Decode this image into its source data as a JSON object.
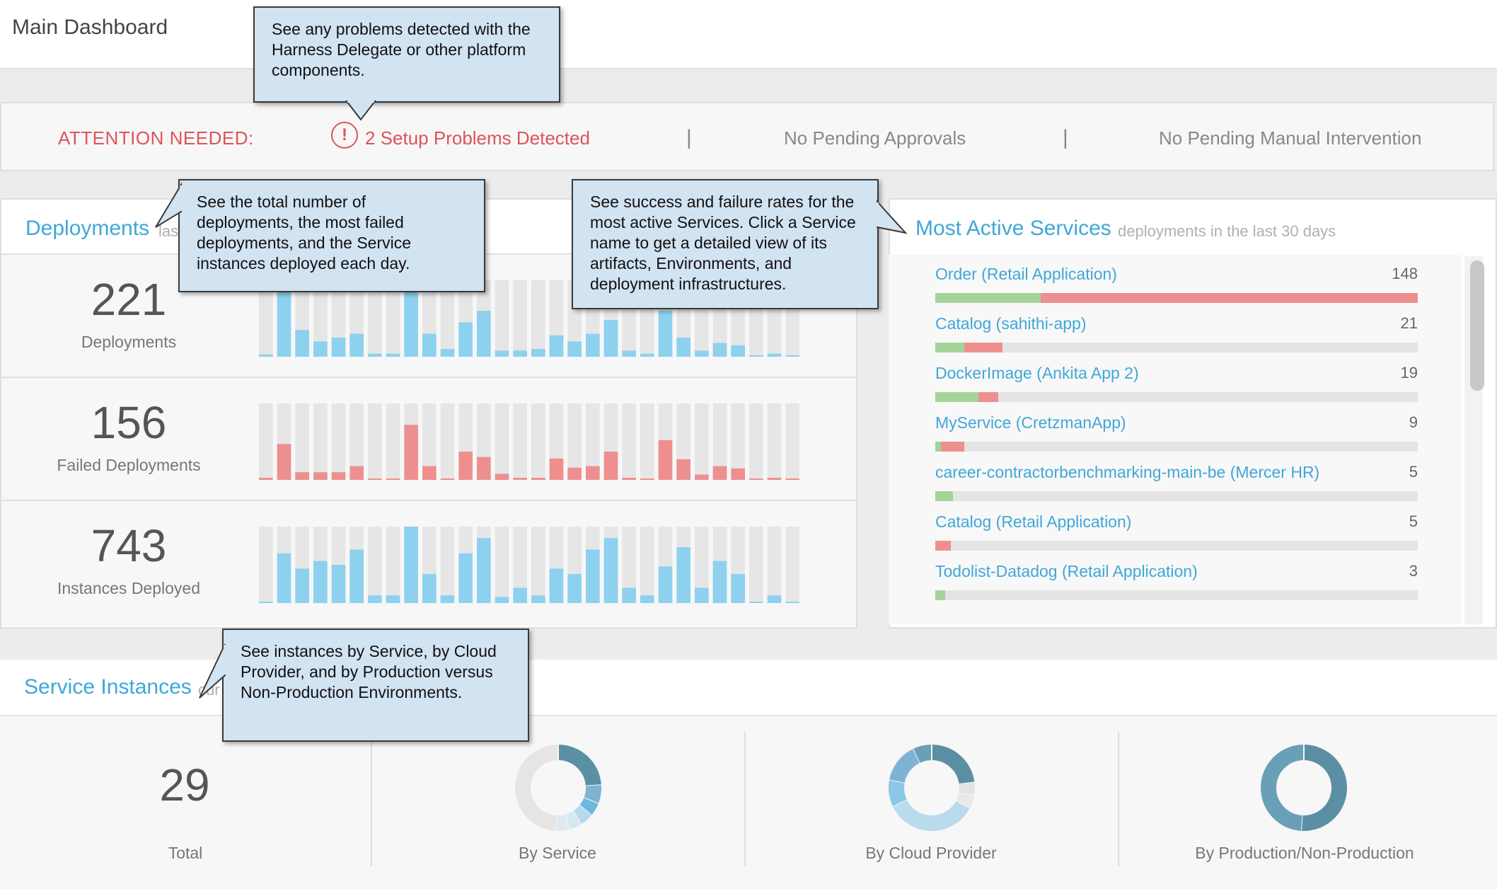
{
  "page_title": "Main Dashboard",
  "attention": {
    "label": "ATTENTION NEEDED:",
    "icon": "exclamation-circle-icon",
    "problems": "2 Setup Problems Detected",
    "separator": "|",
    "approvals": "No Pending Approvals",
    "intervention": "No Pending Manual Intervention"
  },
  "deployments": {
    "title": "Deployments",
    "subtitle_fragment": "las",
    "stats": [
      {
        "value": "221",
        "label": "Deployments"
      },
      {
        "value": "156",
        "label": "Failed Deployments"
      },
      {
        "value": "743",
        "label": "Instances Deployed"
      }
    ]
  },
  "chart_data": [
    {
      "type": "bar",
      "name": "deployments-per-day",
      "color": "#8dd1ee",
      "values": [
        3,
        95,
        35,
        20,
        25,
        30,
        4,
        4,
        95,
        30,
        10,
        45,
        60,
        8,
        8,
        10,
        28,
        20,
        30,
        48,
        8,
        4,
        60,
        25,
        8,
        18,
        15,
        0,
        4,
        0
      ]
    },
    {
      "type": "bar",
      "name": "failed-deployments-per-day",
      "color": "#ee8f8f",
      "values": [
        2,
        47,
        10,
        10,
        10,
        18,
        0,
        0,
        72,
        18,
        0,
        37,
        30,
        8,
        2,
        2,
        28,
        16,
        18,
        37,
        2,
        0,
        52,
        27,
        7,
        18,
        15,
        0,
        2,
        0
      ]
    },
    {
      "type": "bar",
      "name": "instances-deployed-per-day",
      "color": "#8dd1ee",
      "values": [
        0,
        65,
        45,
        55,
        50,
        70,
        10,
        10,
        100,
        38,
        10,
        65,
        85,
        8,
        20,
        10,
        45,
        38,
        70,
        85,
        20,
        10,
        48,
        73,
        20,
        55,
        38,
        0,
        10,
        0
      ]
    }
  ],
  "most_active": {
    "title": "Most Active Services",
    "subtitle": "deployments in the last 30 days",
    "services": [
      {
        "name": "Order (Retail Application)",
        "count": "148",
        "success_pct": 21.8,
        "fail_pct": 78.2
      },
      {
        "name": "Catalog (sahithi-app)",
        "count": "21",
        "success_pct": 6,
        "fail_pct": 8
      },
      {
        "name": "DockerImage (Ankita App 2)",
        "count": "19",
        "success_pct": 9,
        "fail_pct": 4
      },
      {
        "name": "MyService (CretzmanApp)",
        "count": "9",
        "success_pct": 1.2,
        "fail_pct": 4.8
      },
      {
        "name": "career-contractorbenchmarking-main-be (Mercer HR)",
        "count": "5",
        "success_pct": 3.6,
        "fail_pct": 0
      },
      {
        "name": "Catalog (Retail Application)",
        "count": "5",
        "success_pct": 0,
        "fail_pct": 3.2
      },
      {
        "name": "Todolist-Datadog (Retail Application)",
        "count": "3",
        "success_pct": 2,
        "fail_pct": 0
      }
    ]
  },
  "service_instances": {
    "title": "Service Instances",
    "subtitle_fragment": "cur",
    "total_value": "29",
    "total_label": "Total",
    "by_service_label": "By Service",
    "by_cloud_label": "By Cloud Provider",
    "by_prod_label": "By Production/Non-Production",
    "by_service": [
      {
        "value": 24,
        "color": "#5b8fa3"
      },
      {
        "value": 7,
        "color": "#7fb3d3"
      },
      {
        "value": 5,
        "color": "#6cb8de"
      },
      {
        "value": 5,
        "color": "#b6d9ec"
      },
      {
        "value": 5,
        "color": "#d6e9f3"
      },
      {
        "value": 5,
        "color": "#dfe8ee"
      },
      {
        "value": 49,
        "color": "#e5e5e5"
      }
    ],
    "by_cloud": [
      {
        "value": 23,
        "color": "#5b8fa3"
      },
      {
        "value": 5,
        "color": "#e3e3e3"
      },
      {
        "value": 5,
        "color": "#e8e8e8"
      },
      {
        "value": 35,
        "color": "#b9dbec"
      },
      {
        "value": 10,
        "color": "#8cc8e6"
      },
      {
        "value": 15,
        "color": "#7fb3d3"
      },
      {
        "value": 7,
        "color": "#6a9fb8"
      }
    ],
    "by_prod": [
      {
        "value": 51,
        "color": "#5b8fa3"
      },
      {
        "value": 49,
        "color": "#6a9fb8"
      }
    ]
  },
  "callouts": {
    "platform": "See any problems detected with the Harness Delegate or other platform components.",
    "deployments": "See the total number of deployments, the most failed deployments, and the Service instances deployed each day.",
    "services": "See success and failure rates for the most active Services. Click a Service name to get a detailed view of its artifacts, Environments, and deployment infrastructures.",
    "instances": "See instances by Service, by Cloud Provider, and by Production versus Non-Production Environments."
  }
}
